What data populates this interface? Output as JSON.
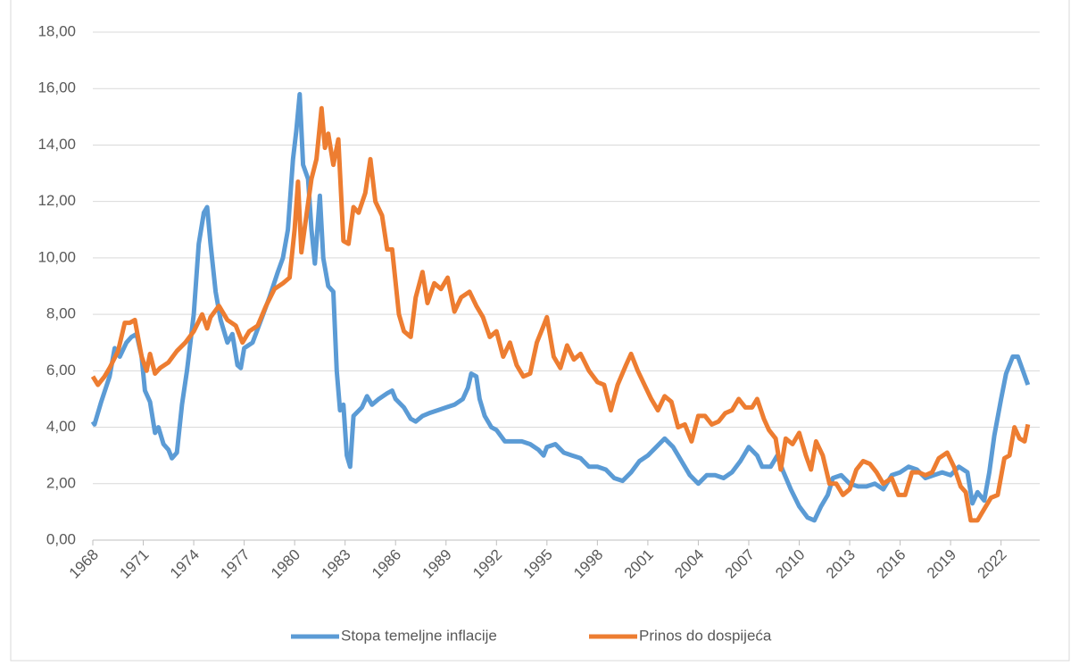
{
  "chart_data": {
    "type": "line",
    "xlim": [
      1968,
      2024.3
    ],
    "xticks": [
      1968,
      1971,
      1974,
      1977,
      1980,
      1983,
      1986,
      1989,
      1992,
      1995,
      1998,
      2001,
      2004,
      2007,
      2010,
      2013,
      2016,
      2019,
      2022
    ],
    "ylim": [
      0,
      18
    ],
    "yticks": [
      {
        "value": 0,
        "label": "0,00"
      },
      {
        "value": 2,
        "label": "2,00"
      },
      {
        "value": 4,
        "label": "4,00"
      },
      {
        "value": 6,
        "label": "6,00"
      },
      {
        "value": 8,
        "label": "8,00"
      },
      {
        "value": 10,
        "label": "10,00"
      },
      {
        "value": 12,
        "label": "12,00"
      },
      {
        "value": 14,
        "label": "14,00"
      },
      {
        "value": 16,
        "label": "16,00"
      },
      {
        "value": 18,
        "label": "18,00"
      }
    ],
    "grid": true,
    "legend": "bottom",
    "series": [
      {
        "name": "Stopa temeljne inflacije",
        "color": "#5b9bd5",
        "x": [
          1968.0,
          1968.1,
          1968.5,
          1969.0,
          1969.3,
          1969.6,
          1970.0,
          1970.3,
          1970.6,
          1970.9,
          1971.1,
          1971.4,
          1971.7,
          1971.9,
          1972.2,
          1972.5,
          1972.7,
          1973.0,
          1973.3,
          1973.6,
          1974.0,
          1974.3,
          1974.6,
          1974.8,
          1975.0,
          1975.3,
          1975.6,
          1976.0,
          1976.3,
          1976.6,
          1976.8,
          1977.0,
          1977.5,
          1978.0,
          1978.5,
          1979.0,
          1979.3,
          1979.6,
          1979.9,
          1980.1,
          1980.3,
          1980.5,
          1980.8,
          1981.0,
          1981.2,
          1981.5,
          1981.7,
          1982.0,
          1982.3,
          1982.5,
          1982.7,
          1982.9,
          1983.1,
          1983.3,
          1983.5,
          1984.0,
          1984.3,
          1984.6,
          1985.0,
          1985.5,
          1985.8,
          1986.0,
          1986.5,
          1986.9,
          1987.2,
          1987.6,
          1988.0,
          1988.5,
          1989.0,
          1989.5,
          1990.0,
          1990.3,
          1990.5,
          1990.8,
          1991.0,
          1991.3,
          1991.7,
          1992.0,
          1992.5,
          1993.0,
          1993.5,
          1994.0,
          1994.5,
          1994.8,
          1995.0,
          1995.5,
          1996.0,
          1996.5,
          1997.0,
          1997.5,
          1998.0,
          1998.5,
          1999.0,
          1999.5,
          2000.0,
          2000.5,
          2001.0,
          2001.5,
          2002.0,
          2002.5,
          2003.0,
          2003.5,
          2004.0,
          2004.5,
          2005.0,
          2005.5,
          2006.0,
          2006.5,
          2007.0,
          2007.5,
          2007.8,
          2008.3,
          2008.7,
          2009.0,
          2009.5,
          2010.0,
          2010.5,
          2010.9,
          2011.3,
          2011.7,
          2012.0,
          2012.5,
          2013.0,
          2013.5,
          2014.0,
          2014.5,
          2015.0,
          2015.5,
          2016.0,
          2016.5,
          2017.0,
          2017.5,
          2018.0,
          2018.5,
          2019.0,
          2019.5,
          2020.0,
          2020.3,
          2020.6,
          2021.0,
          2021.3,
          2021.6,
          2022.0,
          2022.3,
          2022.7,
          2023.0,
          2023.3,
          2023.6
        ],
        "values": [
          4.2,
          4.1,
          4.9,
          5.8,
          6.8,
          6.5,
          7.0,
          7.2,
          7.3,
          6.5,
          5.3,
          4.9,
          3.8,
          4.0,
          3.4,
          3.2,
          2.9,
          3.1,
          4.8,
          6.0,
          8.0,
          10.5,
          11.6,
          11.8,
          10.5,
          8.8,
          7.8,
          7.0,
          7.3,
          6.2,
          6.1,
          6.8,
          7.0,
          7.8,
          8.6,
          9.5,
          10.0,
          11.0,
          13.5,
          14.5,
          15.8,
          13.3,
          12.8,
          11.0,
          9.8,
          12.2,
          10.0,
          9.0,
          8.8,
          6.0,
          4.6,
          4.8,
          3.0,
          2.6,
          4.4,
          4.7,
          5.1,
          4.8,
          5.0,
          5.2,
          5.3,
          5.0,
          4.7,
          4.3,
          4.2,
          4.4,
          4.5,
          4.6,
          4.7,
          4.8,
          5.0,
          5.4,
          5.9,
          5.8,
          5.0,
          4.4,
          4.0,
          3.9,
          3.5,
          3.5,
          3.5,
          3.4,
          3.2,
          3.0,
          3.3,
          3.4,
          3.1,
          3.0,
          2.9,
          2.6,
          2.6,
          2.5,
          2.2,
          2.1,
          2.4,
          2.8,
          3.0,
          3.3,
          3.6,
          3.3,
          2.8,
          2.3,
          2.0,
          2.3,
          2.3,
          2.2,
          2.4,
          2.8,
          3.3,
          3.0,
          2.6,
          2.6,
          3.0,
          2.5,
          1.8,
          1.2,
          0.8,
          0.7,
          1.2,
          1.6,
          2.2,
          2.3,
          2.0,
          1.9,
          1.9,
          2.0,
          1.8,
          2.3,
          2.4,
          2.6,
          2.5,
          2.2,
          2.3,
          2.4,
          2.3,
          2.6,
          2.4,
          1.3,
          1.7,
          1.4,
          2.4,
          3.7,
          5.0,
          5.9,
          6.5,
          6.5,
          6.0,
          5.5
        ]
      },
      {
        "name": "Prinos do dospijeća",
        "color": "#ed7d31",
        "x": [
          1968.0,
          1968.3,
          1968.7,
          1969.0,
          1969.5,
          1969.9,
          1970.2,
          1970.5,
          1970.9,
          1971.2,
          1971.4,
          1971.7,
          1972.0,
          1972.5,
          1973.0,
          1973.5,
          1974.0,
          1974.5,
          1974.8,
          1975.0,
          1975.5,
          1976.0,
          1976.5,
          1976.9,
          1977.3,
          1977.8,
          1978.3,
          1978.8,
          1979.3,
          1979.7,
          1980.0,
          1980.2,
          1980.4,
          1980.7,
          1981.0,
          1981.3,
          1981.6,
          1981.8,
          1982.0,
          1982.3,
          1982.6,
          1982.9,
          1983.2,
          1983.5,
          1983.8,
          1984.2,
          1984.5,
          1984.8,
          1985.2,
          1985.5,
          1985.8,
          1986.2,
          1986.5,
          1986.9,
          1987.2,
          1987.6,
          1987.9,
          1988.3,
          1988.7,
          1989.1,
          1989.5,
          1989.9,
          1990.4,
          1990.8,
          1991.2,
          1991.6,
          1992.0,
          1992.4,
          1992.8,
          1993.2,
          1993.6,
          1994.0,
          1994.4,
          1994.8,
          1995.0,
          1995.4,
          1995.8,
          1996.2,
          1996.6,
          1997.0,
          1997.5,
          1998.0,
          1998.4,
          1998.8,
          1999.2,
          1999.7,
          2000.0,
          2000.4,
          2000.8,
          2001.2,
          2001.6,
          2002.0,
          2002.4,
          2002.8,
          2003.2,
          2003.6,
          2004.0,
          2004.4,
          2004.8,
          2005.2,
          2005.6,
          2006.0,
          2006.4,
          2006.8,
          2007.2,
          2007.5,
          2007.9,
          2008.2,
          2008.6,
          2008.9,
          2009.2,
          2009.6,
          2010.0,
          2010.4,
          2010.7,
          2011.0,
          2011.4,
          2011.8,
          2012.2,
          2012.6,
          2013.0,
          2013.4,
          2013.8,
          2014.2,
          2014.6,
          2015.0,
          2015.5,
          2015.9,
          2016.3,
          2016.7,
          2017.1,
          2017.5,
          2017.9,
          2018.3,
          2018.8,
          2019.2,
          2019.6,
          2019.9,
          2020.2,
          2020.6,
          2021.0,
          2021.4,
          2021.8,
          2022.2,
          2022.5,
          2022.8,
          2023.1,
          2023.4,
          2023.6
        ],
        "values": [
          5.8,
          5.5,
          5.8,
          6.1,
          6.7,
          7.7,
          7.7,
          7.8,
          6.5,
          6.0,
          6.6,
          5.9,
          6.1,
          6.3,
          6.7,
          7.0,
          7.4,
          8.0,
          7.5,
          7.9,
          8.3,
          7.8,
          7.6,
          7.0,
          7.4,
          7.6,
          8.3,
          8.9,
          9.1,
          9.3,
          11.0,
          12.7,
          10.2,
          11.5,
          12.8,
          13.5,
          15.3,
          13.9,
          14.4,
          13.3,
          14.2,
          10.6,
          10.5,
          11.8,
          11.6,
          12.3,
          13.5,
          12.0,
          11.5,
          10.3,
          10.3,
          8.0,
          7.4,
          7.2,
          8.6,
          9.5,
          8.4,
          9.1,
          8.9,
          9.3,
          8.1,
          8.6,
          8.8,
          8.3,
          7.9,
          7.2,
          7.4,
          6.5,
          7.0,
          6.2,
          5.8,
          5.9,
          7.0,
          7.6,
          7.9,
          6.5,
          6.1,
          6.9,
          6.4,
          6.6,
          6.0,
          5.6,
          5.5,
          4.6,
          5.5,
          6.2,
          6.6,
          6.0,
          5.5,
          5.0,
          4.6,
          5.1,
          4.9,
          4.0,
          4.1,
          3.5,
          4.4,
          4.4,
          4.1,
          4.2,
          4.5,
          4.6,
          5.0,
          4.7,
          4.7,
          5.0,
          4.3,
          3.9,
          3.6,
          2.5,
          3.6,
          3.4,
          3.8,
          3.0,
          2.5,
          3.5,
          3.0,
          2.0,
          2.0,
          1.6,
          1.8,
          2.5,
          2.8,
          2.7,
          2.4,
          2.0,
          2.2,
          1.6,
          1.6,
          2.4,
          2.4,
          2.3,
          2.4,
          2.9,
          3.1,
          2.6,
          1.9,
          1.7,
          0.7,
          0.7,
          1.1,
          1.5,
          1.6,
          2.9,
          3.0,
          4.0,
          3.6,
          3.5,
          4.1
        ]
      }
    ]
  }
}
